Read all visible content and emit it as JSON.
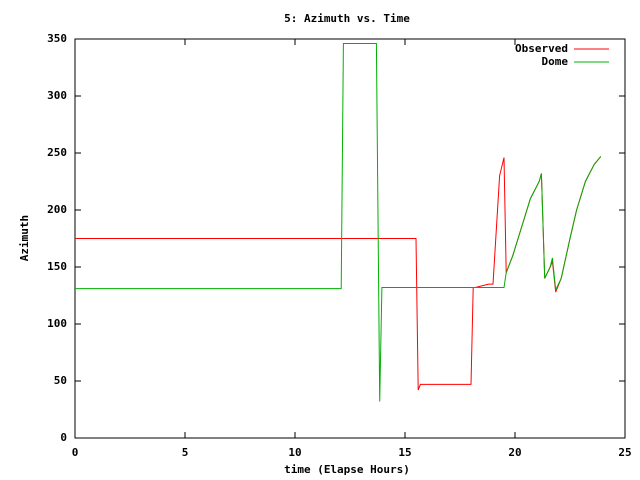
{
  "chart_data": {
    "type": "line",
    "title": "5: Azimuth vs. Time",
    "x_label": "time (Elapse Hours)",
    "y_label": "Azimuth",
    "xlim": [
      0,
      25
    ],
    "xticks": [
      0,
      5,
      10,
      15,
      20,
      25
    ],
    "ylim": [
      0,
      350
    ],
    "yticks": [
      0,
      50,
      100,
      150,
      200,
      250,
      300,
      350
    ],
    "legend": "top-right",
    "grid": false,
    "series": [
      {
        "name": "Observed",
        "color": "#ff0000",
        "x": [
          0,
          15.5,
          15.6,
          15.7,
          18.0,
          18.1,
          18.2,
          18.8,
          19.0,
          19.3,
          19.5,
          19.6,
          19.9,
          20.3,
          20.7,
          21.1,
          21.2,
          21.35,
          21.6,
          21.7,
          21.85,
          22.1,
          22.5,
          22.8,
          23.2,
          23.6,
          23.9
        ],
        "values": [
          175,
          175,
          42,
          47,
          47,
          132,
          132,
          135,
          135,
          230,
          246,
          145,
          160,
          185,
          210,
          225,
          232,
          140,
          150,
          155,
          128,
          140,
          175,
          200,
          225,
          240,
          247
        ]
      },
      {
        "name": "Dome",
        "color": "#00b000",
        "x": [
          0,
          12.1,
          12.2,
          13.7,
          13.85,
          13.95,
          19.5,
          19.6,
          19.9,
          20.3,
          20.7,
          21.1,
          21.2,
          21.35,
          21.6,
          21.7,
          21.85,
          22.1,
          22.5,
          22.8,
          23.2,
          23.6,
          23.9
        ],
        "values": [
          131,
          131,
          346,
          346,
          32,
          132,
          132,
          145,
          160,
          185,
          210,
          225,
          232,
          140,
          150,
          158,
          130,
          140,
          175,
          200,
          225,
          240,
          247
        ]
      }
    ]
  }
}
